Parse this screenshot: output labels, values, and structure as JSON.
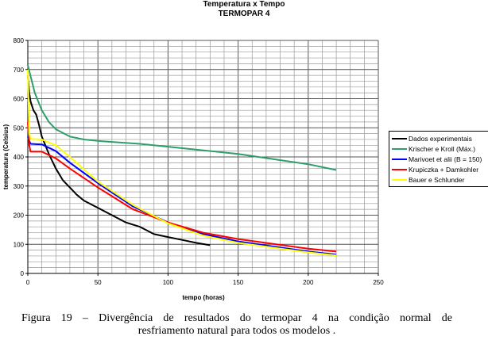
{
  "chart_data": {
    "type": "line",
    "title": "Temperatura x Tempo",
    "subtitle": "TERMOPAR 4",
    "xlabel": "tempo (horas)",
    "ylabel": "temperatura (Celsius)",
    "xlim": [
      0,
      250
    ],
    "ylim": [
      0,
      800
    ],
    "xticks": [
      0,
      50,
      100,
      150,
      200,
      250
    ],
    "yticks": [
      0,
      100,
      200,
      300,
      400,
      500,
      600,
      700,
      800
    ],
    "grid": true,
    "legend_position": "right",
    "series": [
      {
        "name": "Dados experimentais",
        "color": "#000000",
        "x": [
          0,
          1,
          2,
          4,
          6,
          8,
          10,
          15,
          20,
          25,
          30,
          35,
          40,
          50,
          60,
          70,
          80,
          90,
          100,
          110,
          120,
          130
        ],
        "y": [
          680,
          620,
          590,
          560,
          545,
          510,
          470,
          410,
          360,
          320,
          295,
          270,
          250,
          225,
          200,
          175,
          160,
          135,
          125,
          115,
          105,
          97
        ]
      },
      {
        "name": "Krischer e Kroll (Máx.)",
        "color": "#2e9e6a",
        "x": [
          0,
          5,
          10,
          15,
          20,
          30,
          40,
          50,
          80,
          100,
          150,
          200,
          220
        ],
        "y": [
          715,
          620,
          560,
          520,
          495,
          470,
          460,
          455,
          445,
          435,
          410,
          375,
          355
        ]
      },
      {
        "name": "Marivoet et alii (B = 150)",
        "color": "#0000ff",
        "x": [
          0,
          1,
          2,
          10,
          20,
          30,
          50,
          75,
          100,
          125,
          150,
          200,
          220
        ],
        "y": [
          470,
          455,
          445,
          443,
          420,
          380,
          310,
          230,
          175,
          135,
          110,
          75,
          65
        ]
      },
      {
        "name": "Krupiczka + Damkohler",
        "color": "#ff0000",
        "x": [
          0,
          1,
          2,
          10,
          20,
          30,
          50,
          75,
          100,
          125,
          150,
          200,
          220
        ],
        "y": [
          520,
          440,
          418,
          418,
          395,
          360,
          295,
          220,
          175,
          140,
          118,
          85,
          75
        ]
      },
      {
        "name": "Bauer e Schlunder",
        "color": "#ffff00",
        "x": [
          0,
          1,
          2,
          10,
          20,
          30,
          50,
          75,
          100,
          125,
          150,
          200,
          220
        ],
        "y": [
          700,
          480,
          462,
          460,
          440,
          400,
          315,
          235,
          172,
          130,
          105,
          72,
          62
        ]
      }
    ]
  },
  "caption": {
    "line1": "Figura 19 – Divergência de resultados do termopar 4 na condição normal de",
    "line2": "resfriamento natural para todos os modelos ."
  }
}
